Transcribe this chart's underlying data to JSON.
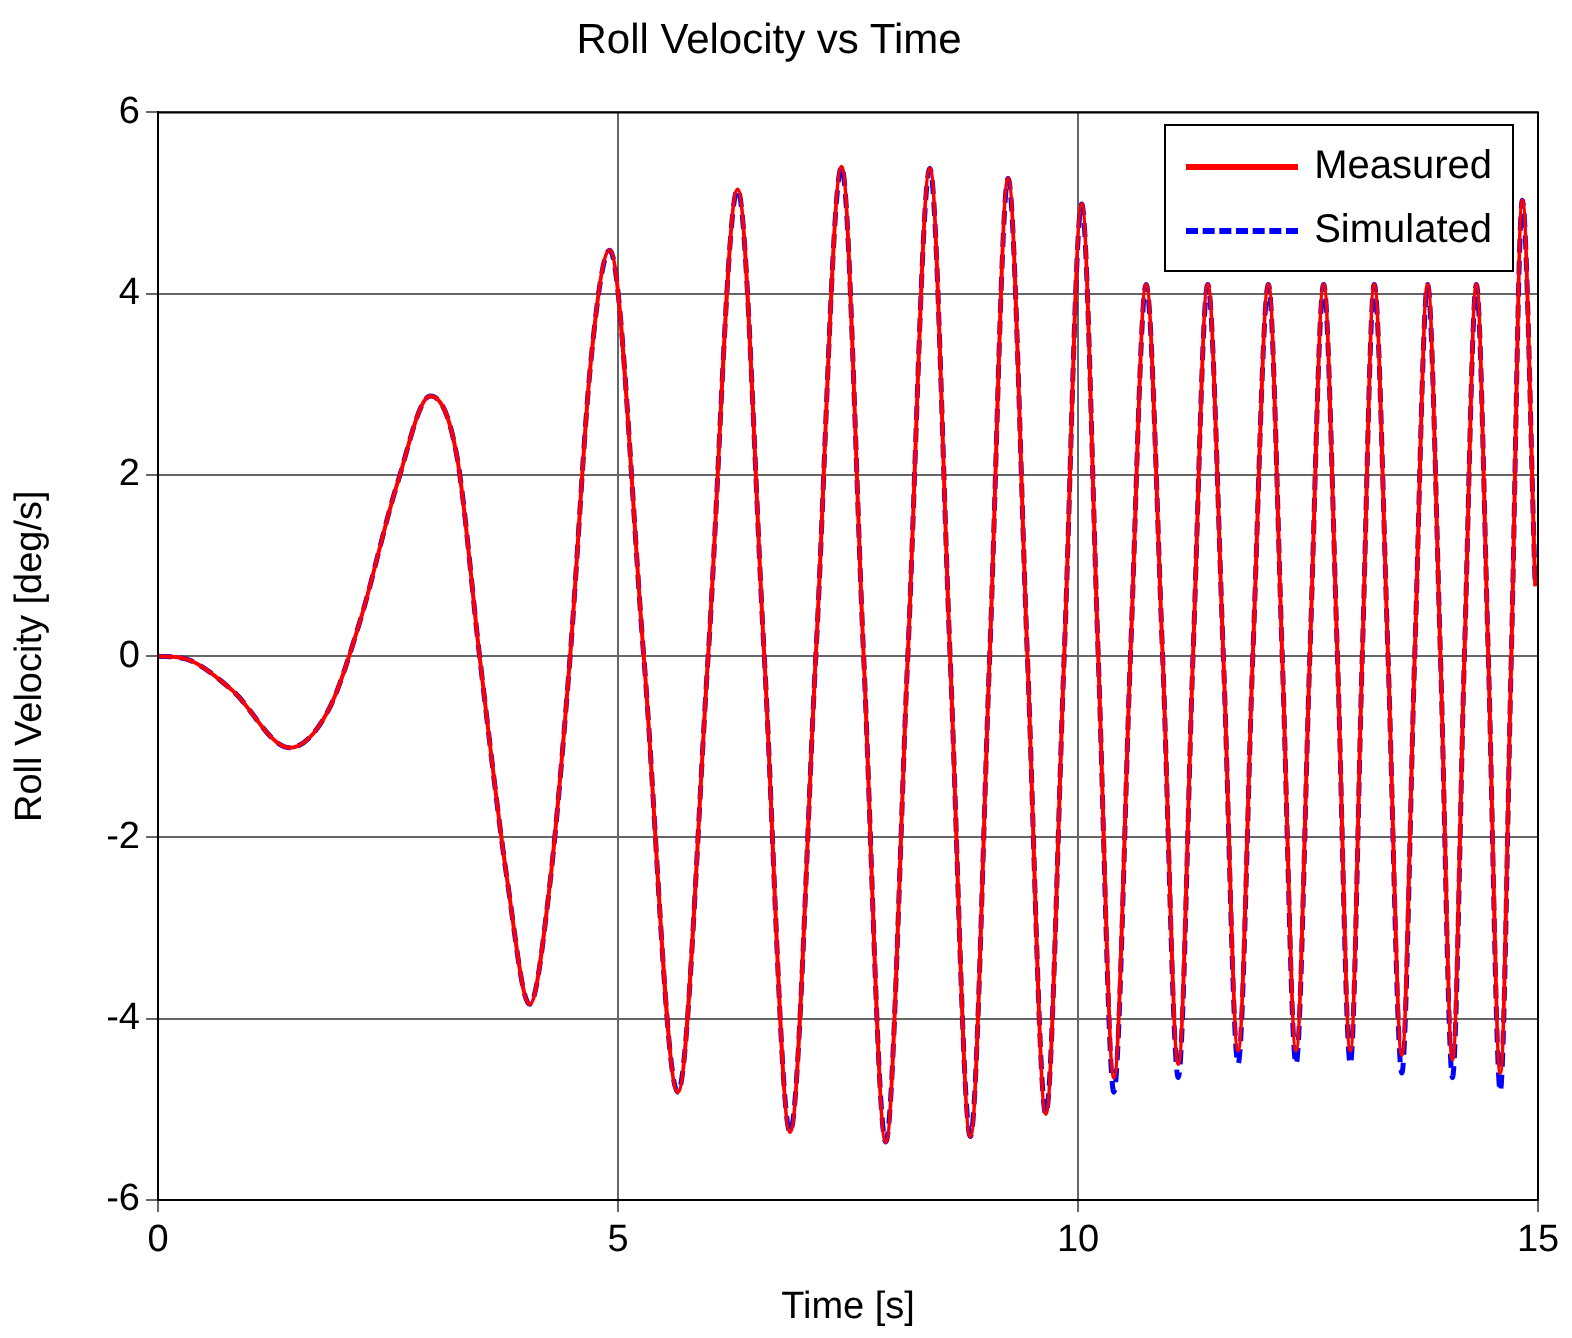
{
  "chart_data": {
    "type": "line",
    "title": "Roll Velocity vs Time",
    "xlabel": "Time [s]",
    "ylabel": "Roll Velocity [deg/s]",
    "x": [
      0,
      0.3,
      0.8,
      1.43,
      1.85,
      2.2,
      2.6,
      2.96,
      3.25,
      3.5,
      3.8,
      4.04,
      4.25,
      4.48,
      4.7,
      4.91,
      5.28,
      5.65,
      5.98,
      6.3,
      6.59,
      6.87,
      7.15,
      7.43,
      7.67,
      7.91,
      8.15,
      8.39,
      8.61,
      8.83,
      9.04,
      9.24,
      9.45,
      9.65,
      9.85,
      10.04,
      10.22,
      10.39,
      10.57,
      10.74,
      10.92,
      11.09,
      11.25,
      11.41,
      11.58,
      11.74,
      11.9,
      12.07,
      12.22,
      12.37,
      12.52,
      12.67,
      12.82,
      12.96,
      13.09,
      13.22,
      13.37,
      13.52,
      13.66,
      13.8,
      13.94,
      14.07,
      14.2,
      14.33,
      14.46,
      14.59,
      14.71,
      14.83,
      14.97
    ],
    "series": [
      {
        "name": "Measured",
        "color": "#ff0000",
        "line_style": "solid",
        "values": [
          0,
          -0.03,
          -0.37,
          -1.01,
          -0.6,
          0.4,
          1.9,
          2.87,
          2.2,
          -0.04,
          -2.5,
          -3.84,
          -2.6,
          0,
          3.2,
          4.48,
          0,
          -4.81,
          0,
          5.15,
          0,
          -5.25,
          0,
          5.4,
          0,
          -5.36,
          0,
          5.38,
          0,
          -5.3,
          0,
          5.27,
          0,
          -5.05,
          0,
          4.99,
          0,
          -4.65,
          0,
          4.1,
          0,
          -4.5,
          0,
          4.1,
          0,
          -4.35,
          0,
          4.1,
          0,
          -4.35,
          0,
          4.1,
          0,
          -4.35,
          0,
          4.1,
          0,
          -4.4,
          0,
          4.1,
          0,
          -4.45,
          0,
          4.1,
          0,
          -4.6,
          0,
          5.03,
          0.77
        ]
      },
      {
        "name": "Simulated",
        "color": "#0000ff",
        "line_style": "dashed",
        "values": [
          0,
          -0.03,
          -0.37,
          -1.01,
          -0.6,
          0.4,
          1.9,
          2.87,
          2.2,
          -0.04,
          -2.5,
          -3.84,
          -2.6,
          0,
          3.2,
          4.48,
          0,
          -4.81,
          0,
          5.15,
          0,
          -5.25,
          0,
          5.4,
          0,
          -5.36,
          0,
          5.38,
          0,
          -5.3,
          0,
          5.27,
          0,
          -5.05,
          0,
          4.99,
          0,
          -4.81,
          0,
          4.1,
          0,
          -4.65,
          0,
          4.1,
          0,
          -4.5,
          0,
          4.1,
          0,
          -4.5,
          0,
          4.1,
          0,
          -4.5,
          0,
          4.1,
          0,
          -4.6,
          0,
          4.1,
          0,
          -4.65,
          0,
          4.1,
          0,
          -4.8,
          0,
          5.03,
          0.77
        ]
      }
    ],
    "xlim": [
      0,
      15
    ],
    "xticks": [
      0,
      5,
      10,
      15
    ],
    "ylim": [
      -6,
      6
    ],
    "yticks": [
      -6,
      -4,
      -2,
      0,
      2,
      4,
      6
    ],
    "grid": true,
    "legend": "top right",
    "marker": "none"
  }
}
